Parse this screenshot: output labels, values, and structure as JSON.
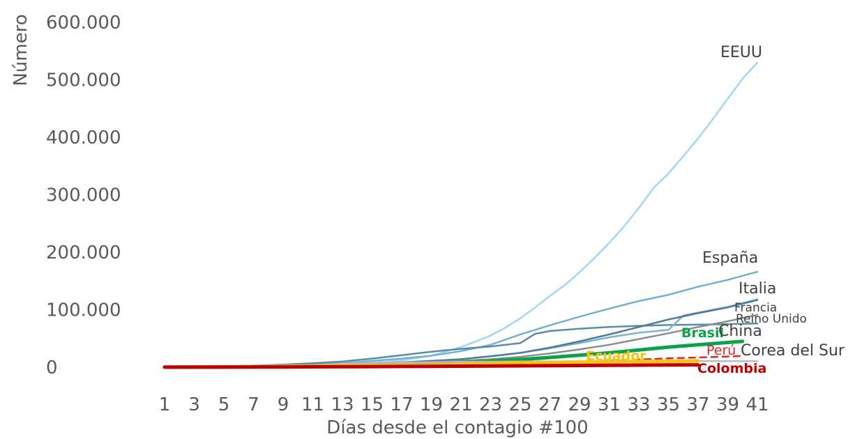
{
  "chart_data": {
    "type": "line",
    "xlabel": "Días desde el contagio #100",
    "ylabel": "Número",
    "xlim": [
      1,
      41
    ],
    "ylim": [
      0,
      600000
    ],
    "x_ticks": [
      1,
      3,
      5,
      7,
      9,
      11,
      13,
      15,
      17,
      19,
      21,
      23,
      25,
      27,
      29,
      31,
      33,
      35,
      37,
      39,
      41
    ],
    "y_ticks": [
      {
        "value": 0,
        "label": "0"
      },
      {
        "value": 100000,
        "label": "100.000"
      },
      {
        "value": 200000,
        "label": "200.000"
      },
      {
        "value": 300000,
        "label": "300.000"
      },
      {
        "value": 400000,
        "label": "400.000"
      },
      {
        "value": 500000,
        "label": "500.000"
      },
      {
        "value": 600000,
        "label": "600.000"
      }
    ],
    "grid": false,
    "legend": "none",
    "series": [
      {
        "name": "EEUU",
        "color": "#9fd8ef",
        "dashed": false,
        "bold": false,
        "points": [
          [
            1,
            100
          ],
          [
            5,
            400
          ],
          [
            9,
            1500
          ],
          [
            11,
            3000
          ],
          [
            13,
            5000
          ],
          [
            15,
            8000
          ],
          [
            17,
            12000
          ],
          [
            19,
            20000
          ],
          [
            21,
            35000
          ],
          [
            22,
            45000
          ],
          [
            23,
            55000
          ],
          [
            24,
            69000
          ],
          [
            25,
            85000
          ],
          [
            26,
            104000
          ],
          [
            27,
            124000
          ],
          [
            28,
            143000
          ],
          [
            29,
            165000
          ],
          [
            30,
            190000
          ],
          [
            31,
            216000
          ],
          [
            32,
            245000
          ],
          [
            33,
            277000
          ],
          [
            34,
            312000
          ],
          [
            35,
            337000
          ],
          [
            36,
            367000
          ],
          [
            37,
            398000
          ],
          [
            38,
            432000
          ],
          [
            39,
            467000
          ],
          [
            40,
            502000
          ],
          [
            41,
            530000
          ]
        ]
      },
      {
        "name": "España",
        "color": "#6fb1cf",
        "dashed": false,
        "bold": false,
        "points": [
          [
            1,
            100
          ],
          [
            5,
            500
          ],
          [
            9,
            2500
          ],
          [
            11,
            4500
          ],
          [
            13,
            7000
          ],
          [
            15,
            11000
          ],
          [
            17,
            15000
          ],
          [
            19,
            20000
          ],
          [
            21,
            28000
          ],
          [
            23,
            39000
          ],
          [
            25,
            57000
          ],
          [
            27,
            73000
          ],
          [
            29,
            88000
          ],
          [
            31,
            102000
          ],
          [
            33,
            115000
          ],
          [
            35,
            126000
          ],
          [
            37,
            140000
          ],
          [
            39,
            152000
          ],
          [
            41,
            166000
          ]
        ]
      },
      {
        "name": "Italia",
        "color": "#5b8aa6",
        "dashed": false,
        "bold": false,
        "points": [
          [
            1,
            100
          ],
          [
            5,
            1200
          ],
          [
            9,
            4500
          ],
          [
            11,
            7000
          ],
          [
            13,
            10000
          ],
          [
            15,
            15000
          ],
          [
            17,
            21000
          ],
          [
            19,
            27000
          ],
          [
            21,
            32000
          ],
          [
            23,
            36000
          ],
          [
            25,
            42000
          ],
          [
            26,
            58000
          ],
          [
            27,
            63000
          ],
          [
            29,
            67000
          ],
          [
            31,
            70000
          ],
          [
            33,
            72000
          ],
          [
            35,
            73500
          ],
          [
            37,
            74000
          ],
          [
            39,
            75000
          ],
          [
            41,
            76000
          ]
        ]
      },
      {
        "name": "Francia",
        "color": "#7fb2d0",
        "dashed": false,
        "bold": false,
        "points": [
          [
            1,
            100
          ],
          [
            5,
            400
          ],
          [
            9,
            1500
          ],
          [
            11,
            3000
          ],
          [
            13,
            5000
          ],
          [
            15,
            7000
          ],
          [
            17,
            9000
          ],
          [
            19,
            11000
          ],
          [
            21,
            14000
          ],
          [
            23,
            19000
          ],
          [
            25,
            25000
          ],
          [
            27,
            33000
          ],
          [
            29,
            42000
          ],
          [
            31,
            52000
          ],
          [
            33,
            60000
          ],
          [
            35,
            65000
          ],
          [
            36,
            90000
          ],
          [
            37,
            95000
          ],
          [
            39,
            105000
          ],
          [
            41,
            118000
          ]
        ]
      },
      {
        "name": "Reino Unido",
        "color": "#4f7c98",
        "dashed": false,
        "bold": false,
        "points": [
          [
            1,
            100
          ],
          [
            5,
            300
          ],
          [
            9,
            1000
          ],
          [
            11,
            2000
          ],
          [
            13,
            3500
          ],
          [
            15,
            5500
          ],
          [
            17,
            8000
          ],
          [
            19,
            11000
          ],
          [
            21,
            14000
          ],
          [
            23,
            19000
          ],
          [
            25,
            25000
          ],
          [
            27,
            34000
          ],
          [
            29,
            45000
          ],
          [
            31,
            57000
          ],
          [
            33,
            70000
          ],
          [
            35,
            83000
          ],
          [
            37,
            94000
          ],
          [
            39,
            104000
          ],
          [
            41,
            117000
          ]
        ]
      },
      {
        "name": "China",
        "color": "#8c8c8c",
        "dashed": false,
        "bold": false,
        "points": [
          [
            1,
            100
          ],
          [
            5,
            200
          ],
          [
            9,
            800
          ],
          [
            11,
            1500
          ],
          [
            13,
            2500
          ],
          [
            15,
            4000
          ],
          [
            17,
            6000
          ],
          [
            19,
            8000
          ],
          [
            21,
            11000
          ],
          [
            23,
            14000
          ],
          [
            25,
            18000
          ],
          [
            27,
            24000
          ],
          [
            29,
            31000
          ],
          [
            31,
            39000
          ],
          [
            33,
            49000
          ],
          [
            35,
            59000
          ],
          [
            37,
            70000
          ],
          [
            39,
            80000
          ],
          [
            41,
            91000
          ]
        ]
      },
      {
        "name": "Brasil",
        "color": "#0aa14a",
        "dashed": false,
        "bold": true,
        "points": [
          [
            1,
            100
          ],
          [
            5,
            300
          ],
          [
            9,
            1000
          ],
          [
            11,
            1800
          ],
          [
            13,
            2800
          ],
          [
            15,
            4000
          ],
          [
            17,
            5200
          ],
          [
            19,
            6500
          ],
          [
            21,
            8000
          ],
          [
            23,
            10500
          ],
          [
            25,
            13500
          ],
          [
            27,
            17000
          ],
          [
            29,
            21000
          ],
          [
            31,
            25000
          ],
          [
            33,
            30000
          ],
          [
            35,
            35000
          ],
          [
            37,
            39000
          ],
          [
            39,
            43000
          ],
          [
            40,
            45000
          ]
        ]
      },
      {
        "name": "Corea del Sur",
        "color": "#b9b9b9",
        "dashed": false,
        "bold": false,
        "points": [
          [
            1,
            100
          ],
          [
            5,
            400
          ],
          [
            9,
            1500
          ],
          [
            11,
            3500
          ],
          [
            13,
            6000
          ],
          [
            15,
            7500
          ],
          [
            17,
            8300
          ],
          [
            19,
            8800
          ],
          [
            21,
            9300
          ],
          [
            23,
            9700
          ],
          [
            25,
            10000
          ],
          [
            27,
            10200
          ],
          [
            29,
            10350
          ],
          [
            31,
            10450
          ],
          [
            33,
            10500
          ],
          [
            35,
            10550
          ],
          [
            37,
            10600
          ],
          [
            39,
            10650
          ],
          [
            41,
            10700
          ]
        ]
      },
      {
        "name": "Perú",
        "color": "#e0262b",
        "dashed": true,
        "bold": false,
        "points": [
          [
            1,
            100
          ],
          [
            5,
            300
          ],
          [
            9,
            600
          ],
          [
            11,
            900
          ],
          [
            13,
            1200
          ],
          [
            15,
            1600
          ],
          [
            17,
            2000
          ],
          [
            19,
            2600
          ],
          [
            21,
            3300
          ],
          [
            23,
            4500
          ],
          [
            25,
            6000
          ],
          [
            27,
            7500
          ],
          [
            29,
            9500
          ],
          [
            31,
            11500
          ],
          [
            33,
            13500
          ],
          [
            35,
            15500
          ],
          [
            37,
            17000
          ],
          [
            39,
            18500
          ],
          [
            40,
            19500
          ]
        ]
      },
      {
        "name": "Ecuador",
        "color": "#f2c418",
        "dashed": false,
        "bold": true,
        "points": [
          [
            1,
            100
          ],
          [
            5,
            800
          ],
          [
            9,
            1500
          ],
          [
            11,
            2000
          ],
          [
            13,
            2500
          ],
          [
            15,
            3000
          ],
          [
            17,
            3500
          ],
          [
            19,
            4000
          ],
          [
            21,
            5000
          ],
          [
            23,
            6500
          ],
          [
            25,
            7500
          ],
          [
            27,
            8200
          ],
          [
            29,
            9000
          ],
          [
            31,
            9500
          ],
          [
            33,
            10000
          ],
          [
            35,
            10500
          ],
          [
            37,
            11000
          ]
        ]
      },
      {
        "name": "Colombia",
        "color": "#c00000",
        "dashed": false,
        "bold": true,
        "points": [
          [
            1,
            100
          ],
          [
            5,
            300
          ],
          [
            9,
            500
          ],
          [
            11,
            700
          ],
          [
            13,
            900
          ],
          [
            15,
            1100
          ],
          [
            17,
            1300
          ],
          [
            19,
            1500
          ],
          [
            21,
            1800
          ],
          [
            23,
            2100
          ],
          [
            25,
            2400
          ],
          [
            27,
            2700
          ],
          [
            29,
            3000
          ],
          [
            31,
            3300
          ],
          [
            33,
            3600
          ],
          [
            35,
            3900
          ],
          [
            37,
            4100
          ]
        ]
      }
    ],
    "annotations": [
      {
        "text": "EEUU",
        "color": "#404040",
        "bold": false
      },
      {
        "text": "España",
        "color": "#404040",
        "bold": false
      },
      {
        "text": "Italia",
        "color": "#404040",
        "bold": false
      },
      {
        "text": "Francia",
        "color": "#404040",
        "bold": false
      },
      {
        "text": "Reino Unido",
        "color": "#404040",
        "bold": false
      },
      {
        "text": "Brasil",
        "color": "#0aa14a",
        "bold": true
      },
      {
        "text": "China",
        "color": "#404040",
        "bold": false
      },
      {
        "text": "Perú",
        "color": "#e0262b",
        "bold": false
      },
      {
        "text": "Corea del Sur",
        "color": "#404040",
        "bold": false
      },
      {
        "text": "Ecuador",
        "color": "#f2c418",
        "bold": true
      },
      {
        "text": "Colombia",
        "color": "#c00000",
        "bold": true
      }
    ]
  }
}
